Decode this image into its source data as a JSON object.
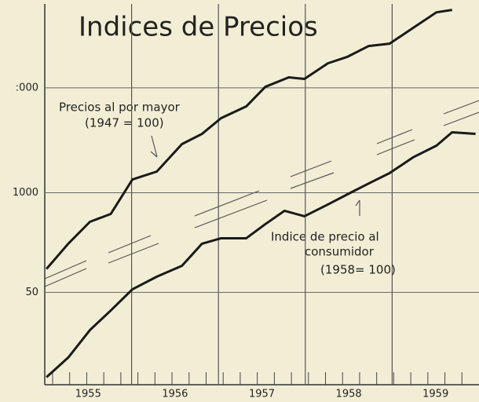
{
  "chart_data": {
    "type": "line",
    "title": "Indices de Precios",
    "annotations": [
      "Precios al por mayor",
      "(1947 = 100)",
      "Indice de precio al",
      "consumidor",
      "(1958= 100)"
    ],
    "xlim": [
      1955,
      1960
    ],
    "xticks": [
      {
        "value": 1955.5,
        "label": "1955"
      },
      {
        "value": 1956.5,
        "label": "1956"
      },
      {
        "value": 1957.5,
        "label": "1957"
      },
      {
        "value": 1958.5,
        "label": "1958"
      },
      {
        "value": 1959.5,
        "label": "1959"
      }
    ],
    "xgrid": [
      1956,
      1957,
      1958,
      1959
    ],
    "ylim": [
      -830,
      2800
    ],
    "yticks": [
      50,
      1000,
      {
        "value": 2000,
        "label": ":000"
      }
    ],
    "grid": true,
    "series": [
      {
        "color": "#1a1a1a",
        "x": [
          1955.02,
          1955.27,
          1955.52,
          1955.76,
          1956.01,
          1956.29,
          1956.58,
          1956.81,
          1957.03,
          1957.32,
          1957.54,
          1957.81,
          1957.99,
          1958.26,
          1958.48,
          1958.73,
          1958.97,
          1959.24,
          1959.51,
          1959.69
        ],
        "values": [
          274,
          514,
          723,
          798,
          1127,
          1202,
          1464,
          1561,
          1711,
          1823,
          2010,
          2100,
          2085,
          2234,
          2294,
          2399,
          2421,
          2571,
          2720,
          2743
        ]
      },
      {
        "color": "#1a1a1a",
        "x": [
          1955.02,
          1955.27,
          1955.52,
          1955.76,
          1956.01,
          1956.29,
          1956.58,
          1956.81,
          1957.03,
          1957.32,
          1957.54,
          1957.76,
          1957.99,
          1958.26,
          1958.52,
          1958.75,
          1958.97,
          1959.24,
          1959.51,
          1959.69,
          1959.96
        ],
        "values": [
          -758,
          -571,
          -309,
          -122,
          80,
          200,
          304,
          514,
          566,
          566,
          701,
          828,
          776,
          888,
          1000,
          1097,
          1187,
          1337,
          1449,
          1576,
          1561
        ]
      }
    ]
  }
}
